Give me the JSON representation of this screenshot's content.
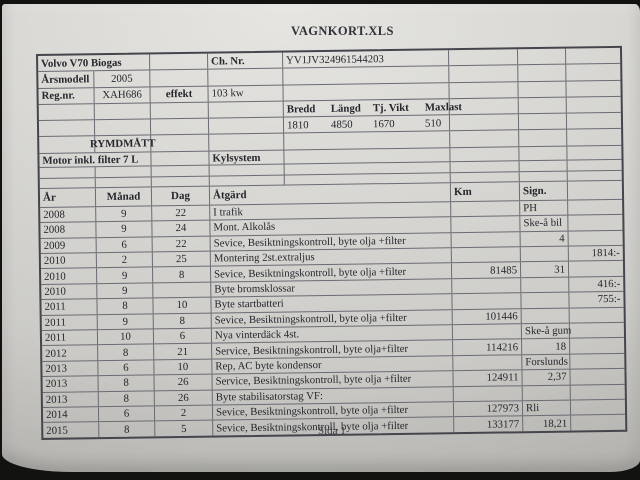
{
  "photo": {
    "surround_color": "#121211",
    "paper_color": "#d8d7d3",
    "grid_line_color": "#6b6b74",
    "text_color": "#26262d"
  },
  "doc": {
    "title": "VAGNKORT.XLS",
    "footer": "Sida 1"
  },
  "info": {
    "model_label": "Volvo V70 Biogas",
    "ch_nr_label": "Ch. Nr.",
    "ch_nr_value": "YV1JV324961544203",
    "arsmodell_label": "Årsmodell",
    "arsmodell_value": "2005",
    "regnr_label": "Reg.nr.",
    "regnr_value": "XAH686",
    "effekt_label": "effekt",
    "effekt_value": "103 kw",
    "dims": {
      "headers": [
        "Bredd",
        "Längd",
        "Tj. Vikt",
        "Maxlast"
      ],
      "values": [
        "1810",
        "4850",
        "1670",
        "510"
      ]
    },
    "rymdmatt_label": "RYMDMÅTT",
    "motor_label": "Motor inkl. filter 7 L",
    "kylsystem_label": "Kylsystem"
  },
  "log": {
    "headers": {
      "year": "År",
      "month": "Månad",
      "day": "Dag",
      "action": "Åtgärd",
      "km": "Km",
      "sign": "Sign."
    },
    "rows": [
      {
        "year": "2008",
        "month": "9",
        "day": "22",
        "action": "I trafik",
        "km": "",
        "sign": "PH",
        "cost": ""
      },
      {
        "year": "2008",
        "month": "9",
        "day": "24",
        "action": "Mont. Alkolås",
        "km": "",
        "sign": "Ske-å bil",
        "cost": ""
      },
      {
        "year": "2009",
        "month": "6",
        "day": "22",
        "action": "Sevice, Besiktningskontroll, byte olja +filter",
        "km": "",
        "sign": "4",
        "cost": ""
      },
      {
        "year": "2010",
        "month": "2",
        "day": "25",
        "action": "Montering 2st.extraljus",
        "km": "",
        "sign": "",
        "cost": "1814:-"
      },
      {
        "year": "2010",
        "month": "9",
        "day": "8",
        "action": "Sevice, Besiktningskontroll, byte olja +filter",
        "km": "81485",
        "sign": "31",
        "cost": ""
      },
      {
        "year": "2010",
        "month": "9",
        "day": "",
        "action": "Byte bromsklossar",
        "km": "",
        "sign": "",
        "cost": "416:-"
      },
      {
        "year": "2011",
        "month": "8",
        "day": "10",
        "action": "Byte startbatteri",
        "km": "",
        "sign": "",
        "cost": "755:-"
      },
      {
        "year": "2011",
        "month": "9",
        "day": "8",
        "action": "Sevice, Besiktningskontroll, byte olja +filter",
        "km": "101446",
        "sign": "",
        "cost": ""
      },
      {
        "year": "2011",
        "month": "10",
        "day": "6",
        "action": "Nya vinterdäck 4st.",
        "km": "",
        "sign": "Ske-å gum",
        "cost": ""
      },
      {
        "year": "2012",
        "month": "8",
        "day": "21",
        "action": "Service, Besiktningskontroll, byte olja+filter",
        "km": "114216",
        "sign": "18",
        "cost": ""
      },
      {
        "year": "2013",
        "month": "6",
        "day": "10",
        "action": "Rep, AC byte kondensor",
        "km": "",
        "sign": "Forslunds",
        "cost": ""
      },
      {
        "year": "2013",
        "month": "8",
        "day": "26",
        "action": "Service, Besiktningskontroll, byte olja +filter",
        "km": "124911",
        "sign": "2,37",
        "cost": ""
      },
      {
        "year": "2013",
        "month": "8",
        "day": "26",
        "action": "Byte stabilisatorstag VF:",
        "km": "",
        "sign": "",
        "cost": ""
      },
      {
        "year": "2014",
        "month": "6",
        "day": "2",
        "action": "Sevice, Besiktningskontroll, byte olja +filter",
        "km": "127973",
        "sign": "Rli",
        "cost": ""
      },
      {
        "year": "2015",
        "month": "8",
        "day": "5",
        "action": "Sevice, Besiktningskontroll, byte olja +filter",
        "km": "133177",
        "sign": "18,21",
        "cost": ""
      }
    ]
  }
}
